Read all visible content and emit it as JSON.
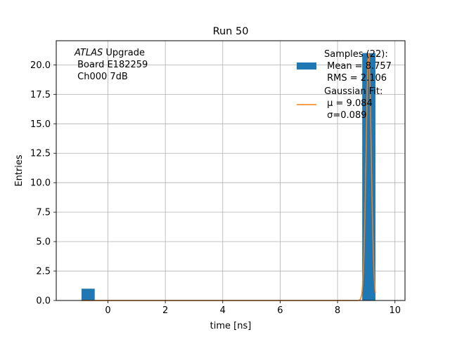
{
  "chart_data": {
    "type": "bar",
    "title": "Run 50",
    "xlabel": "time [ns]",
    "ylabel": "Entries",
    "xlim": [
      -1.8,
      10.35
    ],
    "ylim": [
      0,
      22.05
    ],
    "x_ticks": [
      0,
      2,
      4,
      6,
      8,
      10
    ],
    "x_tick_labels": [
      "0",
      "2",
      "4",
      "6",
      "8",
      "10"
    ],
    "y_ticks": [
      0,
      2.5,
      5,
      7.5,
      10,
      12.5,
      15,
      17.5,
      20
    ],
    "y_tick_labels": [
      "0.0",
      "2.5",
      "5.0",
      "7.5",
      "10.0",
      "12.5",
      "15.0",
      "17.5",
      "20.0"
    ],
    "grid": true,
    "legend_position": "top-right",
    "annotation": {
      "line1_italic": "ATLAS",
      "line1_rest": " Upgrade",
      "line2": " Board E182259",
      "line3": " Ch000 7dB"
    },
    "series": [
      {
        "kind": "histogram",
        "color": "#1f77b4",
        "legend_lines": [
          "Samples (22):",
          " Mean = 8.757",
          " RMS = 2.106"
        ],
        "bins": [
          {
            "x0": -0.92,
            "x1": -0.46,
            "count": 1
          },
          {
            "x0": 8.86,
            "x1": 9.32,
            "count": 21
          }
        ]
      },
      {
        "kind": "gaussian-fit",
        "color": "#ff7f0e",
        "legend_lines": [
          "Gaussian Fit:",
          " μ = 9.084",
          " σ=0.089"
        ],
        "mu": 9.084,
        "sigma": 0.089,
        "amplitude": 21,
        "x_range": [
          -0.92,
          9.32
        ]
      }
    ]
  }
}
